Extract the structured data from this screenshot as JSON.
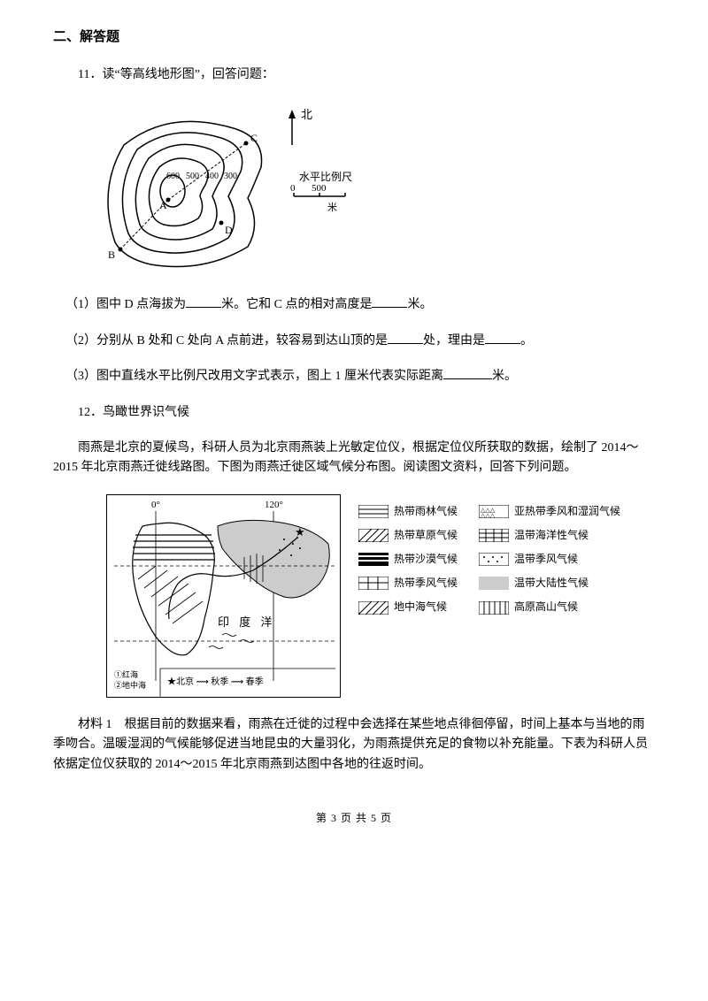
{
  "section_title": "二、解答题",
  "q11": {
    "intro": "11．读“等高线地形图”，回答问题：",
    "sub1_before": "（1）图中 D 点海拔为",
    "sub1_mid": "米。它和 C 点的相对高度是",
    "sub1_after": "米。",
    "sub2_before": "（2）分别从 B 处和 C 处向 A 点前进，较容易到达山顶的是",
    "sub2_mid": "处，理由是",
    "sub2_after": "。",
    "sub3_before": "（3）图中直线水平比例尺改用文字式表示，图上 1 厘米代表实际距离",
    "sub3_after": "米。",
    "figure": {
      "north": "北",
      "scale_label": "水平比例尺",
      "scale_values": [
        "0",
        "500"
      ],
      "scale_unit": "米",
      "contours": [
        "600",
        "500",
        "400",
        "300"
      ],
      "points": [
        "A",
        "B",
        "C",
        "D"
      ]
    }
  },
  "q12": {
    "intro": "12．鸟瞰世界识气候",
    "para1": "雨燕是北京的夏候鸟，科研人员为北京雨燕装上光敏定位仪，根据定位仪所获取的数据，绘制了 2014～2015 年北京雨燕迁徙线路图。下图为雨燕迁徙区域气候分布图。阅读图文资料，回答下列问题。",
    "map": {
      "lon0": "0°",
      "lon120": "120°",
      "ocean": "印  度  洋",
      "note1": "①红海",
      "note2": "②地中海",
      "legend_bottom": "★北京  ⟿ 秋季  ⟿ 春季"
    },
    "legend": [
      {
        "label": "热带雨林气候",
        "fill": "#fff",
        "pattern": "hstripe"
      },
      {
        "label": "亚热带季风和湿润气候",
        "fill": "#fff",
        "pattern": "triangles"
      },
      {
        "label": "热带草原气候",
        "fill": "#fff",
        "pattern": "diag"
      },
      {
        "label": "温带海洋性气候",
        "fill": "#fff",
        "pattern": "crosshatch"
      },
      {
        "label": "热带沙漠气候",
        "fill": "#000",
        "pattern": "hstripe-bold"
      },
      {
        "label": "温带季风气候",
        "fill": "#fff",
        "pattern": "dots"
      },
      {
        "label": "热带季风气候",
        "fill": "#fff",
        "pattern": "grid"
      },
      {
        "label": "温带大陆性气候",
        "fill": "#ccc",
        "pattern": "solid"
      },
      {
        "label": "地中海气候",
        "fill": "#fff",
        "pattern": "diag2"
      },
      {
        "label": "高原高山气候",
        "fill": "#fff",
        "pattern": "vstripe"
      }
    ],
    "para2": "材料 1　根据目前的数据来看，雨燕在迁徙的过程中会选择在某些地点徘徊停留，时间上基本与当地的雨季吻合。温暖湿润的气候能够促进当地昆虫的大量羽化，为雨燕提供充足的食物以补充能量。下表为科研人员依据定位仪获取的 2014～2015 年北京雨燕到达图中各地的往返时间。"
  },
  "footer": {
    "page_label_before": "第",
    "page_current": "3",
    "page_mid": "页 共",
    "page_total": "5",
    "page_after": "页"
  }
}
